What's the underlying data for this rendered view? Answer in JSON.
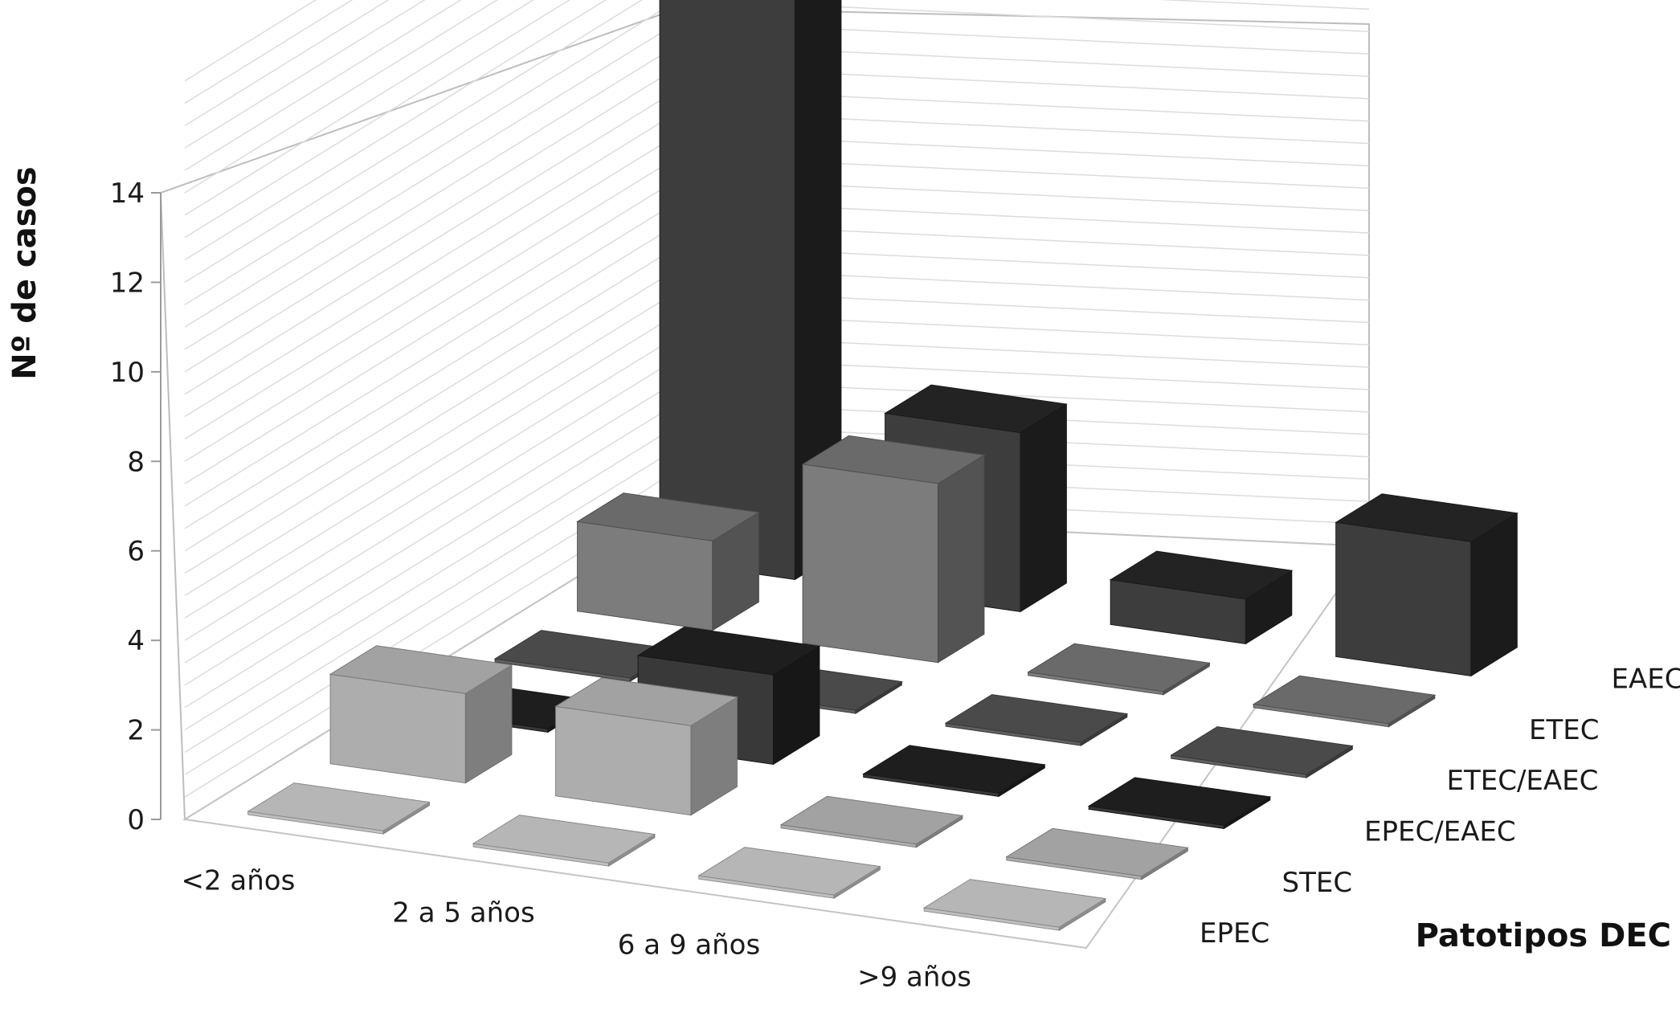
{
  "chart_data": {
    "type": "bar3d",
    "ylabel": "Nº de casos",
    "zlabel": "Patotipos DEC",
    "ylim": [
      0,
      14
    ],
    "yticks": [
      0,
      2,
      4,
      6,
      8,
      10,
      12,
      14
    ],
    "categories": [
      "<2 años",
      "2 a 5 años",
      "6 a 9 años",
      ">9 años"
    ],
    "series": [
      {
        "name": "EPEC",
        "values": [
          0,
          0,
          0,
          0
        ],
        "color": "#b6b6b6"
      },
      {
        "name": "STEC",
        "values": [
          2,
          2,
          0,
          0
        ],
        "color": "#a2a2a2"
      },
      {
        "name": "EPEC/EAEC",
        "values": [
          0,
          2,
          0,
          0
        ],
        "color": "#1e1e1e"
      },
      {
        "name": "ETEC/EAEC",
        "values": [
          0,
          0,
          0,
          0
        ],
        "color": "#4a4a4a"
      },
      {
        "name": "ETEC",
        "values": [
          2,
          4,
          0,
          0
        ],
        "color": "#6a6a6a"
      },
      {
        "name": "EAEC",
        "values": [
          14,
          4,
          1,
          3
        ],
        "color": "#232323"
      }
    ],
    "grid": true
  }
}
